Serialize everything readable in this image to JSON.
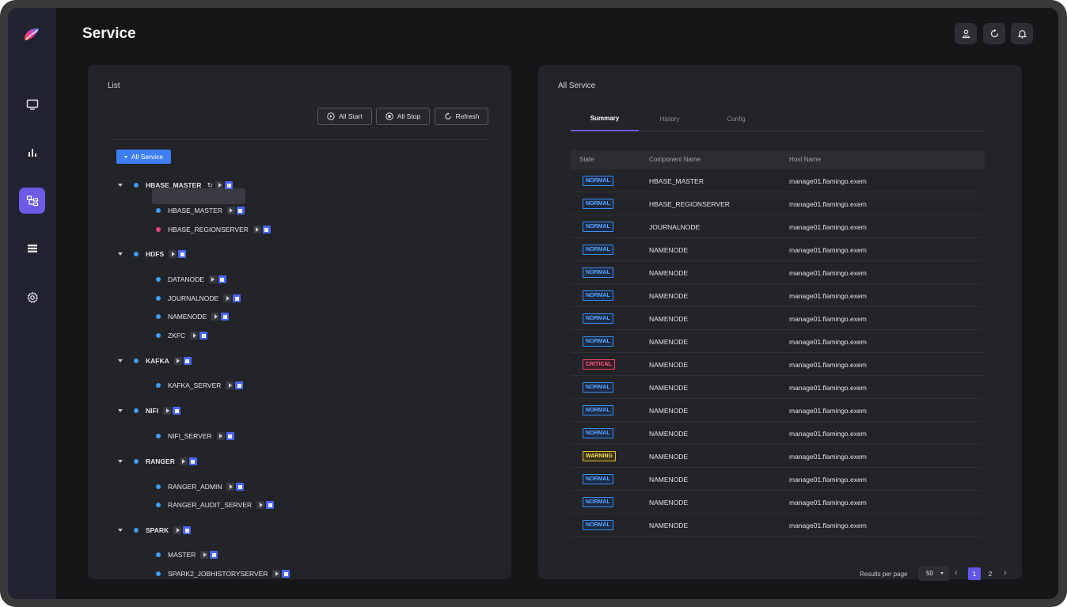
{
  "app": {
    "page_title": "Service",
    "nav": [
      "monitor-icon",
      "chart-icon",
      "service-tree-icon",
      "list-icon",
      "gear-icon"
    ],
    "top_buttons": [
      "user-icon",
      "refresh-icon",
      "bell-icon"
    ]
  },
  "list_panel": {
    "title": "List",
    "buttons": {
      "all_start": "All Start",
      "all_stop": "All Stop",
      "refresh": "Refresh"
    },
    "all_service": "All Service",
    "tree": [
      {
        "name": "HBASE_MASTER",
        "children": [
          "HBASE_MASTER",
          "HBASE_REGIONSERVER"
        ]
      },
      {
        "name": "HDFS",
        "children": [
          "DATANODE",
          "JOURNALNODE",
          "NAMENODE",
          "ZKFC"
        ]
      },
      {
        "name": "KAFKA",
        "children": [
          "KAFKA_SERVER"
        ]
      },
      {
        "name": "NIFI",
        "children": [
          "NIFI_SERVER"
        ]
      },
      {
        "name": "RANGER",
        "children": [
          "RANGER_ADMIN",
          "RANGER_AUDIT_SERVER"
        ]
      },
      {
        "name": "SPARK",
        "children": [
          "MASTER",
          "SPARK2_JOBHISTORYSERVER"
        ]
      }
    ]
  },
  "detail_panel": {
    "title": "All Service",
    "tabs": [
      "Summary",
      "History",
      "Config"
    ],
    "columns": [
      "State",
      "Component Name",
      "Host Name"
    ],
    "rows": [
      {
        "state": "NORMAL",
        "component": "HBASE_MASTER",
        "host": "manage01.flamingo.exem"
      },
      {
        "state": "NORMAL",
        "component": "HBASE_REGIONSERVER",
        "host": "manage01.flamingo.exem"
      },
      {
        "state": "NORMAL",
        "component": "JOURNALNODE",
        "host": "manage01.flamingo.exem"
      },
      {
        "state": "NORMAL",
        "component": "NAMENODE",
        "host": "manage01.flamingo.exem"
      },
      {
        "state": "NORMAL",
        "component": "NAMENODE",
        "host": "manage01.flamingo.exem"
      },
      {
        "state": "NORMAL",
        "component": "NAMENODE",
        "host": "manage01.flamingo.exem"
      },
      {
        "state": "NORMAL",
        "component": "NAMENODE",
        "host": "manage01.flamingo.exem"
      },
      {
        "state": "NORMAL",
        "component": "NAMENODE",
        "host": "manage01.flamingo.exem"
      },
      {
        "state": "CRITICAL",
        "component": "NAMENODE",
        "host": "manage01.flamingo.exem"
      },
      {
        "state": "NORMAL",
        "component": "NAMENODE",
        "host": "manage01.flamingo.exem"
      },
      {
        "state": "NORMAL",
        "component": "NAMENODE",
        "host": "manage01.flamingo.exem"
      },
      {
        "state": "NORMAL",
        "component": "NAMENODE",
        "host": "manage01.flamingo.exem"
      },
      {
        "state": "WARNING",
        "component": "NAMENODE",
        "host": "manage01.flamingo.exem"
      },
      {
        "state": "NORMAL",
        "component": "NAMENODE",
        "host": "manage01.flamingo.exem"
      },
      {
        "state": "NORMAL",
        "component": "NAMENODE",
        "host": "manage01.flamingo.exem"
      },
      {
        "state": "NORMAL",
        "component": "NAMENODE",
        "host": "manage01.flamingo.exem"
      }
    ],
    "pagination": {
      "label": "Results per page",
      "per_page": "50",
      "pages": [
        "1",
        "2"
      ],
      "current": "1"
    }
  },
  "colors": {
    "accent": "#6c5be6",
    "primary": "#3d7ef5",
    "normal": "#5aa5ff",
    "critical": "#ff5b83",
    "warning": "#f4dc56"
  }
}
